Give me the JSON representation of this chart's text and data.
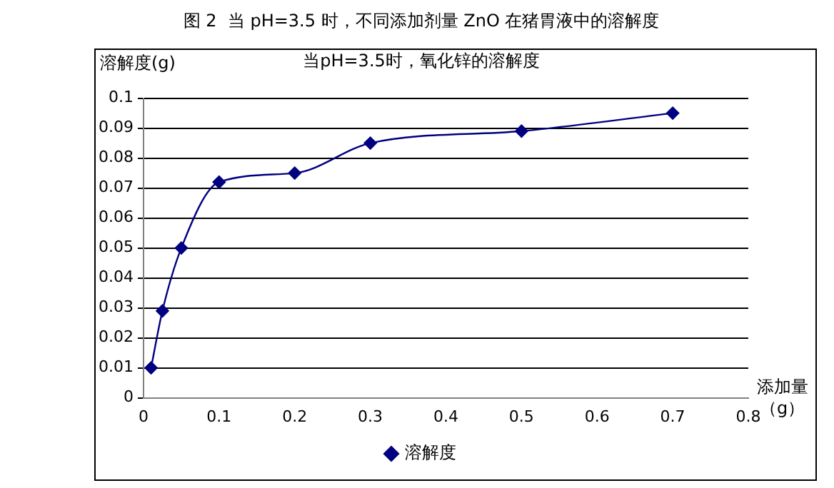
{
  "chart_data": {
    "type": "line",
    "title": "图 2  当 pH=3.5 时，不同添加剂量 ZnO 在猪胃液中的溶解度",
    "subtitle": "当pH=3.5时，氧化锌的溶解度",
    "xlabel": "添加量（g）",
    "ylabel": "溶解度(g)",
    "x": [
      0.01,
      0.025,
      0.05,
      0.1,
      0.2,
      0.3,
      0.5,
      0.7
    ],
    "series": [
      {
        "name": "溶解度",
        "color": "#000080",
        "values": [
          0.01,
          0.029,
          0.05,
          0.072,
          0.075,
          0.085,
          0.089,
          0.095
        ]
      }
    ],
    "xlim": [
      0,
      0.8
    ],
    "xticks": [
      0,
      0.1,
      0.2,
      0.3,
      0.4,
      0.5,
      0.6,
      0.7,
      0.8
    ],
    "ylim": [
      0,
      0.1
    ],
    "yticks": [
      0,
      0.01,
      0.02,
      0.03,
      0.04,
      0.05,
      0.06,
      0.07,
      0.08,
      0.09,
      0.1
    ],
    "grid": "y",
    "legend": "bottom",
    "marker": "diamond",
    "line_style": "solid"
  }
}
